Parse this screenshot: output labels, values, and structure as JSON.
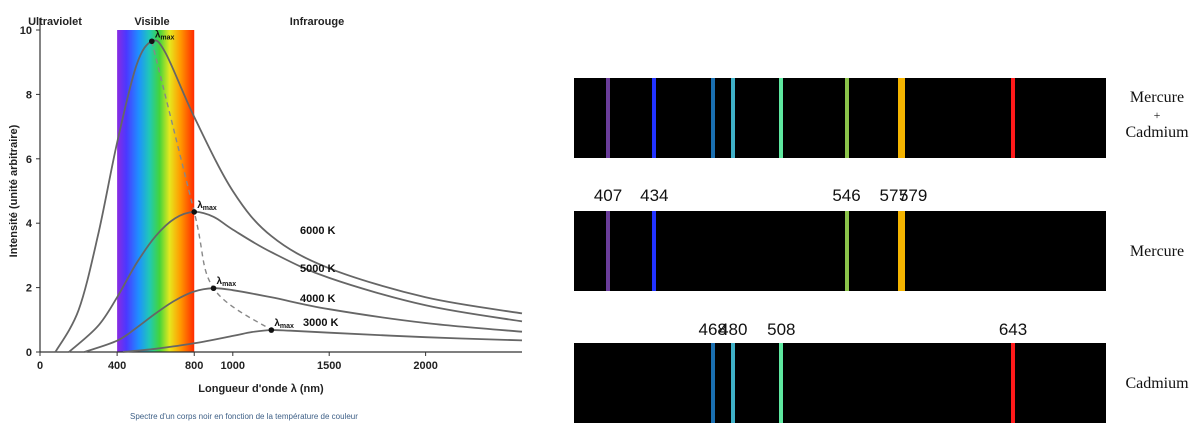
{
  "chart_data": [
    {
      "type": "line",
      "caption": "Spectre d'un corps noir en fonction de la température de couleur",
      "xlabel": "Longueur d'onde λ (nm)",
      "ylabel": "Intensité (unité arbitraire)",
      "xlim": [
        0,
        2500
      ],
      "ylim": [
        0,
        10
      ],
      "x_ticks": [
        "0",
        "400",
        "800",
        "1000",
        "1500",
        "2000"
      ],
      "y_ticks": [
        "0",
        "2",
        "4",
        "6",
        "8",
        "10"
      ],
      "region_labels": {
        "uv": "Ultraviolet",
        "visible": "Visible",
        "ir": "Infrarouge"
      },
      "visible_band_nm": [
        400,
        800
      ],
      "peak_label": "λmax",
      "peak_label_main": "λ",
      "peak_label_sub": "max",
      "series": [
        {
          "name": "6000 K",
          "peak_x": 580,
          "peak_y": 9.65,
          "points": [
            [
              80,
              0
            ],
            [
              200,
              1.3
            ],
            [
              300,
              3.6
            ],
            [
              400,
              6.5
            ],
            [
              500,
              8.9
            ],
            [
              580,
              9.65
            ],
            [
              650,
              9.3
            ],
            [
              800,
              7.3
            ],
            [
              1000,
              5.0
            ],
            [
              1200,
              3.6
            ],
            [
              1500,
              2.6
            ],
            [
              2000,
              1.7
            ],
            [
              2500,
              1.2
            ]
          ]
        },
        {
          "name": "5000 K",
          "peak_x": 800,
          "peak_y": 4.35,
          "points": [
            [
              150,
              0
            ],
            [
              300,
              0.8
            ],
            [
              400,
              1.7
            ],
            [
              500,
              2.75
            ],
            [
              600,
              3.6
            ],
            [
              700,
              4.15
            ],
            [
              800,
              4.35
            ],
            [
              900,
              4.2
            ],
            [
              1000,
              3.8
            ],
            [
              1200,
              3.1
            ],
            [
              1500,
              2.3
            ],
            [
              2000,
              1.45
            ],
            [
              2500,
              0.95
            ]
          ]
        },
        {
          "name": "4000 K",
          "peak_x": 900,
          "peak_y": 1.98,
          "points": [
            [
              230,
              0
            ],
            [
              400,
              0.35
            ],
            [
              500,
              0.75
            ],
            [
              600,
              1.2
            ],
            [
              700,
              1.6
            ],
            [
              800,
              1.88
            ],
            [
              900,
              1.98
            ],
            [
              1000,
              1.92
            ],
            [
              1200,
              1.7
            ],
            [
              1500,
              1.33
            ],
            [
              2000,
              0.9
            ],
            [
              2500,
              0.63
            ]
          ]
        },
        {
          "name": "3000 K",
          "peak_x": 1200,
          "peak_y": 0.68,
          "points": [
            [
              430,
              0
            ],
            [
              600,
              0.1
            ],
            [
              800,
              0.27
            ],
            [
              1000,
              0.5
            ],
            [
              1100,
              0.62
            ],
            [
              1200,
              0.68
            ],
            [
              1300,
              0.66
            ],
            [
              1500,
              0.6
            ],
            [
              2000,
              0.46
            ],
            [
              2500,
              0.36
            ]
          ]
        }
      ],
      "wien_curve": [
        [
          580,
          9.65
        ],
        [
          800,
          4.35
        ],
        [
          900,
          1.98
        ],
        [
          1200,
          0.68
        ]
      ]
    },
    {
      "type": "spectral_lines",
      "rows": [
        {
          "label_lines": [
            "Mercure",
            "+",
            "Cadmium"
          ],
          "lines": [
            {
              "nm": 407,
              "color": "#6a3d9a"
            },
            {
              "nm": 434,
              "color": "#2233ff"
            },
            {
              "nm": 468,
              "color": "#1a6fb0"
            },
            {
              "nm": 480,
              "color": "#3fb0c8"
            },
            {
              "nm": 508,
              "color": "#5ee8a0"
            },
            {
              "nm": 546,
              "color": "#8bc34a"
            },
            {
              "nm": 577,
              "color": "#f4b400"
            },
            {
              "nm": 579,
              "color": "#f4b400"
            },
            {
              "nm": 643,
              "color": "#ff1a1a"
            }
          ],
          "nm_labels": []
        },
        {
          "label_lines": [
            "Mercure"
          ],
          "lines": [
            {
              "nm": 407,
              "color": "#6a3d9a"
            },
            {
              "nm": 434,
              "color": "#2233ff"
            },
            {
              "nm": 546,
              "color": "#8bc34a"
            },
            {
              "nm": 577,
              "color": "#f4b400"
            },
            {
              "nm": 579,
              "color": "#f4b400"
            }
          ],
          "nm_labels": [
            "407",
            "434",
            "546",
            "577",
            "579"
          ]
        },
        {
          "label_lines": [
            "Cadmium"
          ],
          "lines": [
            {
              "nm": 468,
              "color": "#1a6fb0"
            },
            {
              "nm": 480,
              "color": "#3fb0c8"
            },
            {
              "nm": 508,
              "color": "#5ee8a0"
            },
            {
              "nm": 643,
              "color": "#ff1a1a"
            }
          ],
          "nm_labels": [
            "468",
            "480",
            "508",
            "643"
          ]
        }
      ]
    }
  ]
}
